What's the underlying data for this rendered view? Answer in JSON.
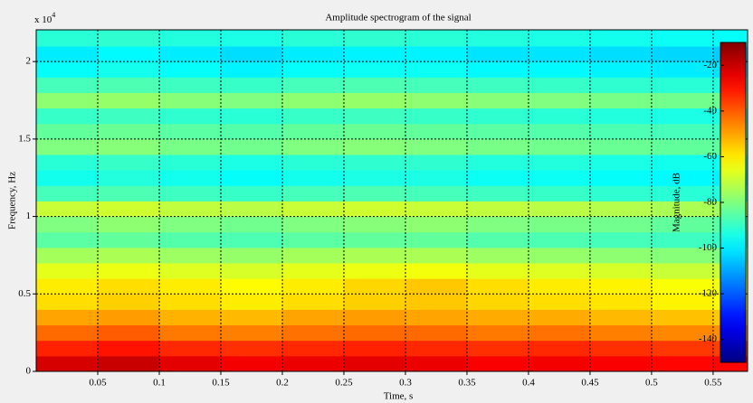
{
  "chart_data": {
    "type": "heatmap",
    "title": "Amplitude spectrogram of the signal",
    "x_label": "Time, s",
    "y_label": "Frequency, Hz",
    "y_multiplier": {
      "base": "x 10",
      "exponent": "4"
    },
    "colorbar_label": "Magnitude, dB",
    "colormap": "jet",
    "grid": true,
    "xlim": [
      0,
      0.578
    ],
    "ylim": [
      0,
      22050
    ],
    "clim": [
      -150,
      -10
    ],
    "xticks": [
      0.05,
      0.1,
      0.15,
      0.2,
      0.25,
      0.3,
      0.35,
      0.4,
      0.45,
      0.5,
      0.55
    ],
    "yticks": [
      0,
      {
        "value": 5000,
        "label": "0.5"
      },
      {
        "value": 10000,
        "label": "1"
      },
      {
        "value": 15000,
        "label": "1.5"
      },
      {
        "value": 20000,
        "label": "2"
      }
    ],
    "cticks": [
      -20,
      -40,
      -60,
      -80,
      -100,
      -120,
      -140
    ],
    "x_edges": [
      0,
      0.05,
      0.1,
      0.15,
      0.2,
      0.25,
      0.3,
      0.35,
      0.4,
      0.45,
      0.5,
      0.55,
      0.578
    ],
    "y_edges": [
      0,
      1000,
      2000,
      3000,
      4000,
      5000,
      6000,
      7000,
      8000,
      9000,
      10000,
      11000,
      12000,
      13000,
      14000,
      15000,
      16000,
      17000,
      18000,
      19000,
      20000,
      21000,
      22050
    ],
    "z": [
      [
        -22,
        -20,
        -24,
        -26,
        -25,
        -24,
        -25,
        -27,
        -26,
        -27,
        -28,
        -28
      ],
      [
        -32,
        -30,
        -33,
        -34,
        -33,
        -32,
        -33,
        -34,
        -33,
        -34,
        -35,
        -36
      ],
      [
        -42,
        -40,
        -44,
        -45,
        -43,
        -42,
        -42,
        -44,
        -43,
        -45,
        -46,
        -47
      ],
      [
        -50,
        -49,
        -52,
        -53,
        -50,
        -49,
        -50,
        -51,
        -51,
        -53,
        -54,
        -55
      ],
      [
        -58,
        -56,
        -58,
        -60,
        -58,
        -56,
        -55,
        -57,
        -58,
        -59,
        -61,
        -62
      ],
      [
        -60,
        -58,
        -60,
        -62,
        -60,
        -57,
        -55,
        -58,
        -60,
        -61,
        -63,
        -64
      ],
      [
        -66,
        -65,
        -67,
        -68,
        -66,
        -65,
        -64,
        -66,
        -67,
        -68,
        -70,
        -70
      ],
      [
        -75,
        -74,
        -76,
        -77,
        -75,
        -74,
        -74,
        -76,
        -77,
        -78,
        -79,
        -80
      ],
      [
        -85,
        -84,
        -86,
        -87,
        -85,
        -84,
        -84,
        -86,
        -87,
        -88,
        -89,
        -90
      ],
      [
        -80,
        -78,
        -80,
        -82,
        -80,
        -79,
        -78,
        -80,
        -81,
        -82,
        -84,
        -85
      ],
      [
        -70,
        -69,
        -71,
        -72,
        -70,
        -69,
        -70,
        -71,
        -72,
        -73,
        -74,
        -75
      ],
      [
        -88,
        -87,
        -89,
        -90,
        -88,
        -87,
        -88,
        -89,
        -90,
        -91,
        -92,
        -93
      ],
      [
        -95,
        -93,
        -95,
        -97,
        -95,
        -94,
        -94,
        -96,
        -96,
        -97,
        -98,
        -99
      ],
      [
        -92,
        -90,
        -92,
        -94,
        -92,
        -91,
        -91,
        -93,
        -93,
        -94,
        -95,
        -96
      ],
      [
        -80,
        -79,
        -81,
        -82,
        -80,
        -79,
        -80,
        -81,
        -82,
        -83,
        -84,
        -85
      ],
      [
        -84,
        -83,
        -85,
        -86,
        -84,
        -83,
        -84,
        -85,
        -86,
        -87,
        -88,
        -89
      ],
      [
        -90,
        -89,
        -91,
        -92,
        -90,
        -89,
        -90,
        -91,
        -92,
        -93,
        -94,
        -94
      ],
      [
        -78,
        -77,
        -79,
        -80,
        -78,
        -77,
        -78,
        -79,
        -80,
        -81,
        -82,
        -83
      ],
      [
        -88,
        -87,
        -89,
        -90,
        -88,
        -87,
        -88,
        -89,
        -90,
        -91,
        -92,
        -93
      ],
      [
        -97,
        -95,
        -97,
        -99,
        -97,
        -96,
        -96,
        -98,
        -98,
        -99,
        -100,
        -101
      ],
      [
        -100,
        -98,
        -100,
        -102,
        -100,
        -99,
        -99,
        -101,
        -101,
        -102,
        -103,
        -104
      ],
      [
        -92,
        -91,
        -93,
        -94,
        -92,
        -91,
        -92,
        -93,
        -94,
        -95,
        -96,
        -97
      ]
    ]
  }
}
